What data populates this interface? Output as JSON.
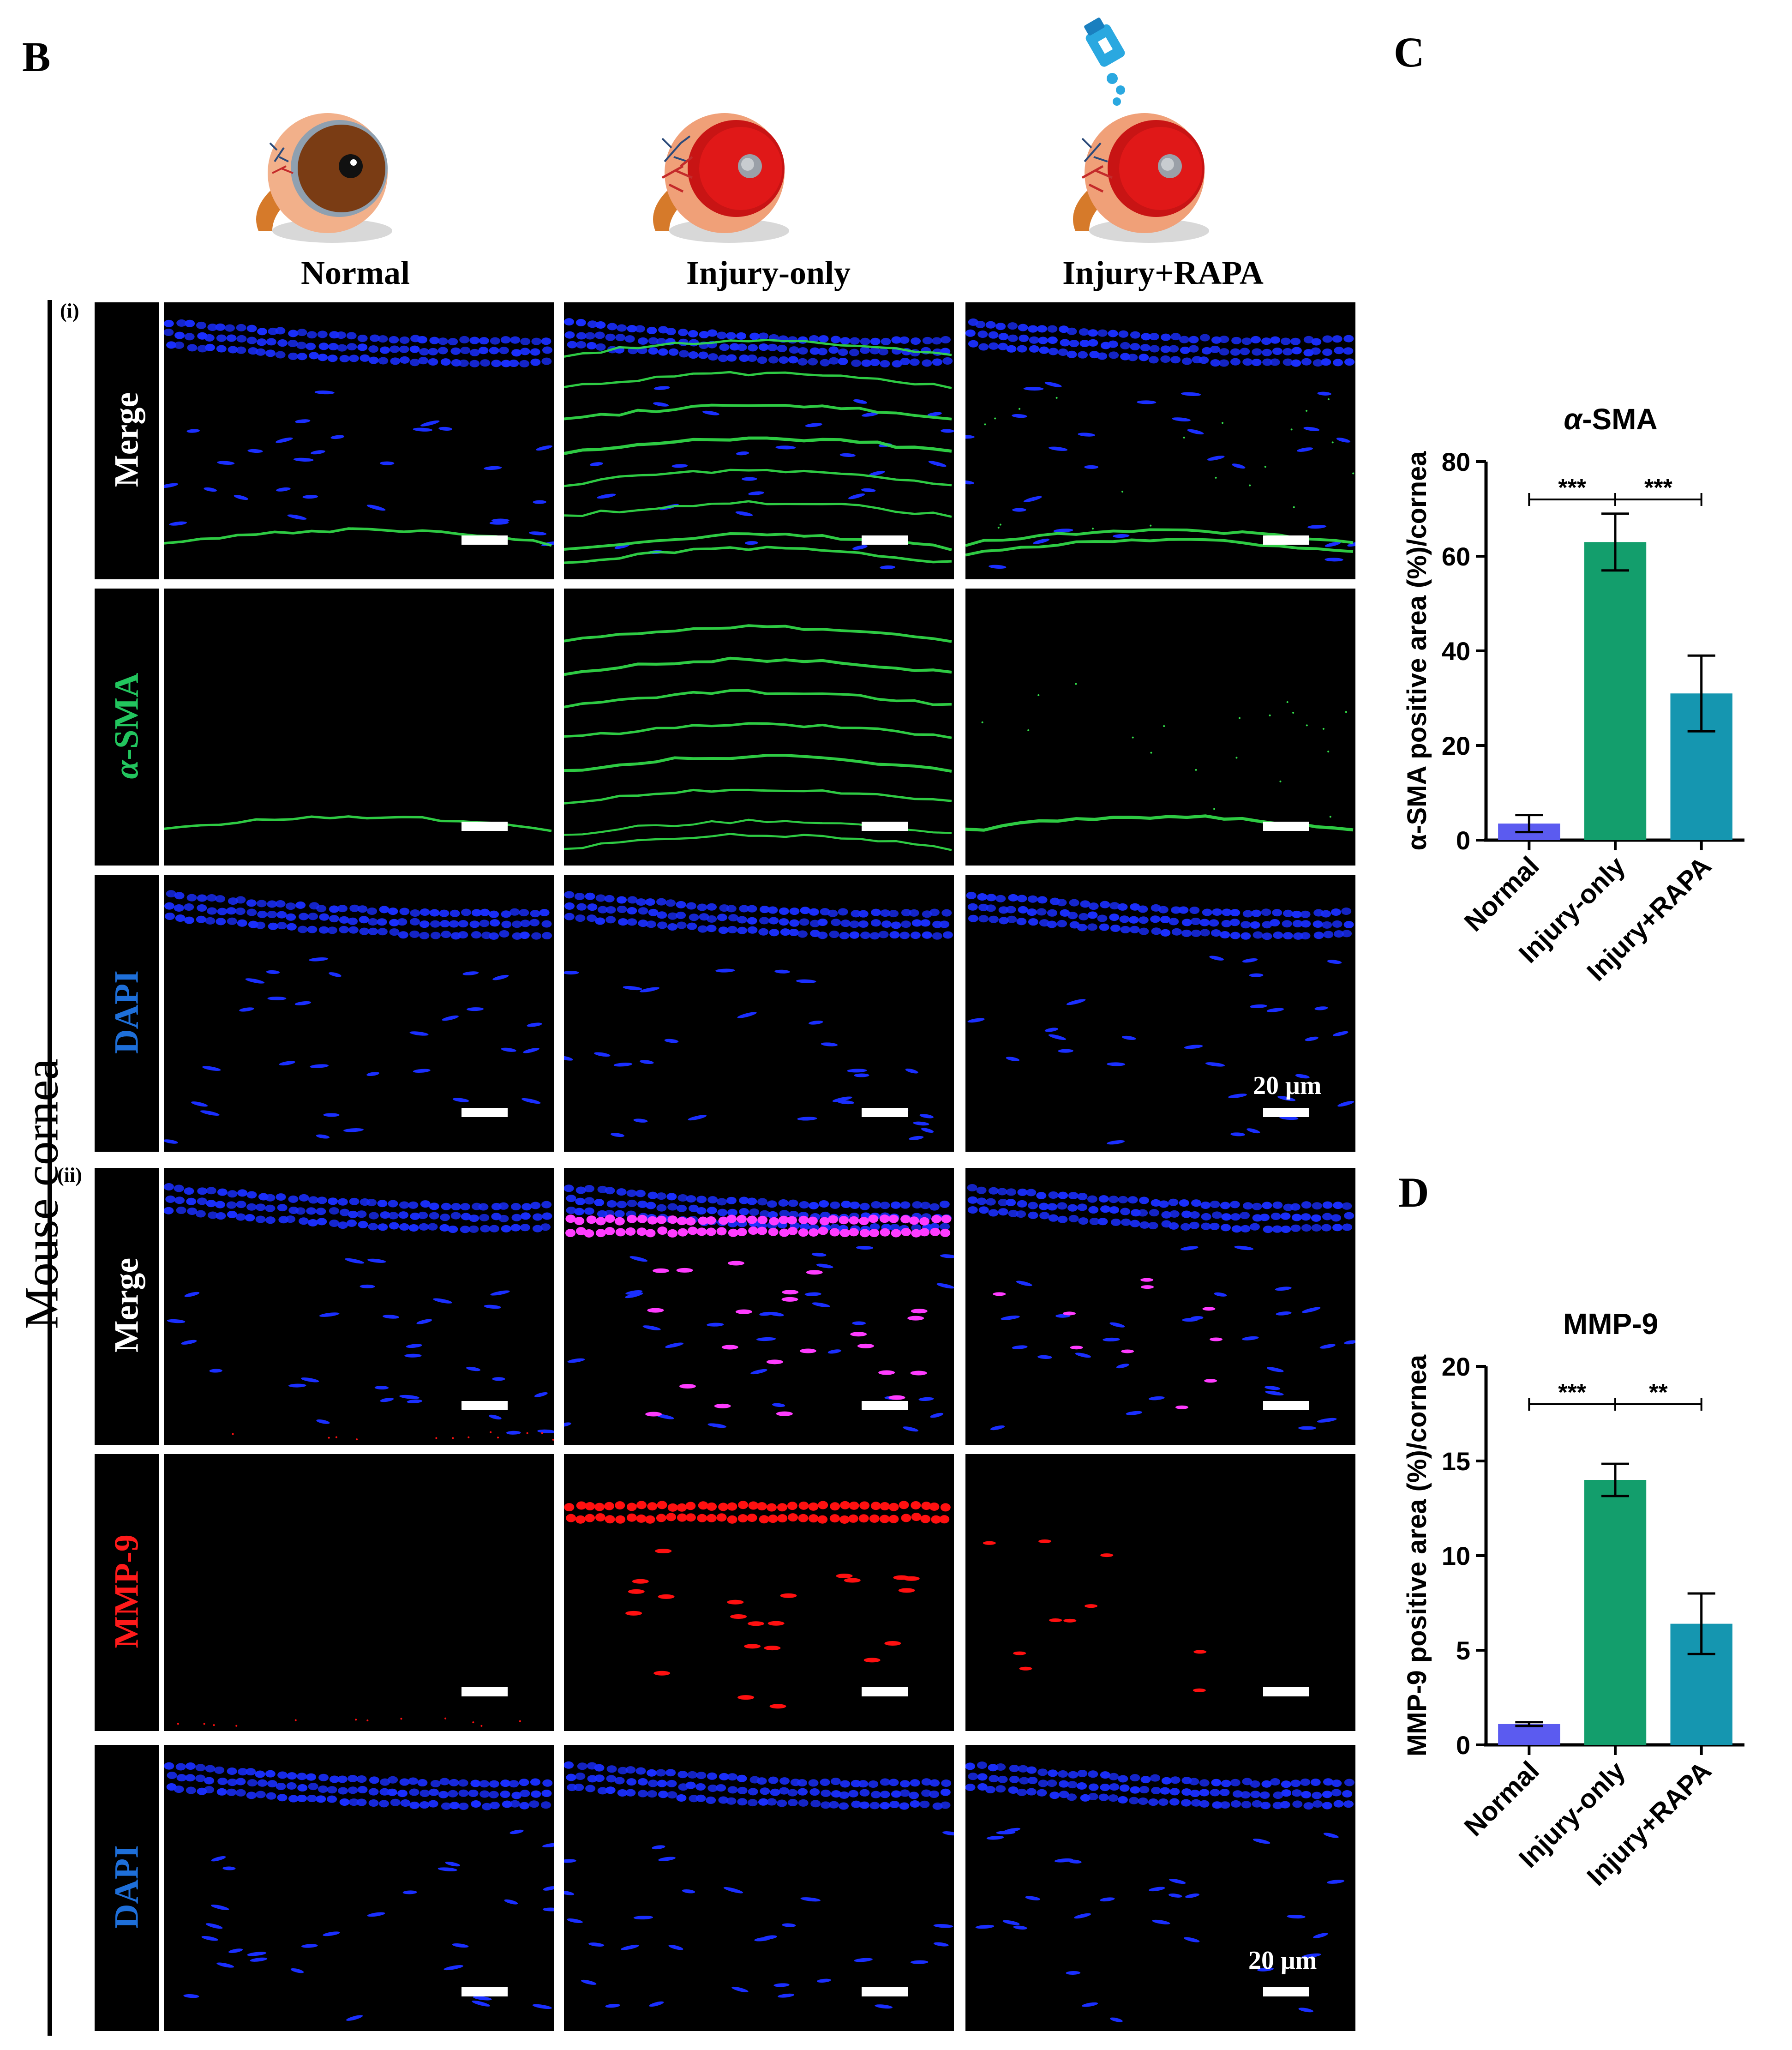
{
  "panels": {
    "b_letter": "B",
    "c_letter": "C",
    "d_letter": "D"
  },
  "columns": [
    "Normal",
    "Injury-only",
    "Injury+RAPA"
  ],
  "side_label": "Mouse cornea",
  "sections": [
    {
      "label": "(i)",
      "rows": [
        {
          "label": "Merge",
          "color": "#ffffff",
          "italic_prefix": ""
        },
        {
          "label": "-SMA",
          "color": "#22c55e",
          "italic_prefix": "α"
        },
        {
          "label": "DAPI",
          "color": "#1e6fd9",
          "italic_prefix": ""
        }
      ],
      "scale_bar_text": "20 μm"
    },
    {
      "label": "(ii)",
      "rows": [
        {
          "label": "Merge",
          "color": "#ffffff",
          "italic_prefix": ""
        },
        {
          "label": "MMP-9",
          "color": "#ff1a1a",
          "italic_prefix": ""
        },
        {
          "label": "DAPI",
          "color": "#1e6fd9",
          "italic_prefix": ""
        }
      ],
      "scale_bar_text": "20 μm"
    }
  ],
  "chart_data": [
    {
      "type": "bar",
      "title_prefix": "α",
      "title": "-SMA",
      "ylabel": "α-SMA positive area (%)/cornea",
      "categories": [
        "Normal",
        "Injury-only",
        "Injury+RAPA"
      ],
      "values": [
        3.5,
        63,
        31
      ],
      "errors": [
        1.8,
        6,
        8
      ],
      "colors": [
        "#5b5bf0",
        "#139e6c",
        "#1596b0"
      ],
      "ylim": [
        0,
        80
      ],
      "yticks": [
        "0",
        "20",
        "40",
        "60",
        "80"
      ],
      "significance": [
        {
          "pair": [
            0,
            1
          ],
          "text": "***"
        },
        {
          "pair": [
            1,
            2
          ],
          "text": "***"
        }
      ]
    },
    {
      "type": "bar",
      "title": "MMP-9",
      "ylabel": "MMP-9 positive area (%)/cornea",
      "categories": [
        "Normal",
        "Injury-only",
        "Injury+RAPA"
      ],
      "values": [
        1.1,
        14,
        6.4
      ],
      "errors": [
        0.1,
        0.85,
        1.6
      ],
      "colors": [
        "#5b5bf0",
        "#139e6c",
        "#1596b0"
      ],
      "ylim": [
        0,
        20
      ],
      "yticks": [
        "0",
        "5",
        "10",
        "15",
        "20"
      ],
      "significance": [
        {
          "pair": [
            0,
            1
          ],
          "text": "***"
        },
        {
          "pair": [
            1,
            2
          ],
          "text": "**"
        }
      ]
    }
  ]
}
